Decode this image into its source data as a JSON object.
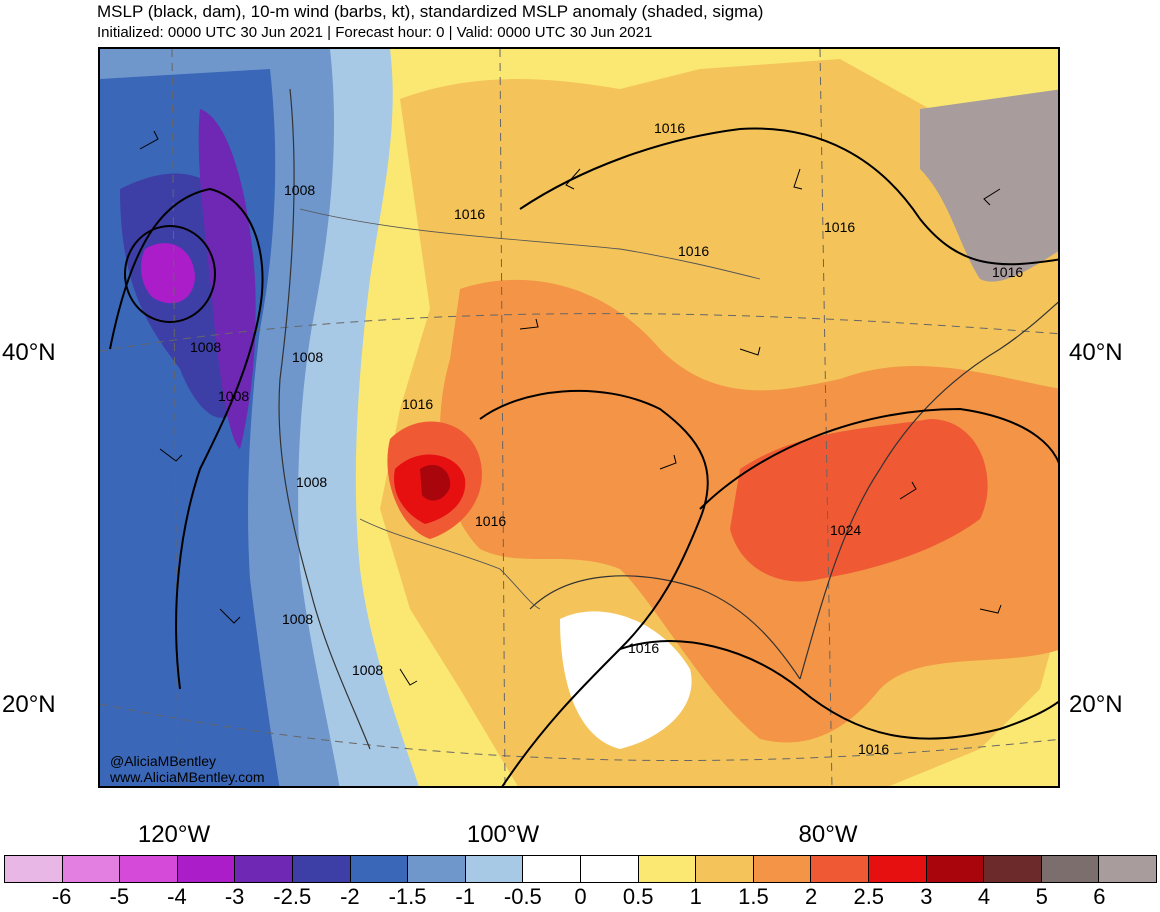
{
  "header": {
    "title": "MSLP (black, dam), 10-m wind (barbs, kt), standardized MSLP anomaly (shaded, sigma)",
    "subtitle": "Initialized: 0000 UTC 30 Jun 2021 | Forecast hour: 0 | Valid: 0000 UTC 30 Jun 2021"
  },
  "map": {
    "lat_labels": [
      "40°N",
      "20°N"
    ],
    "lon_labels": [
      "120°W",
      "100°W",
      "80°W"
    ],
    "credit_handle": "@AliciaMBentley",
    "credit_url": "www.AliciaMBentley.com",
    "isobar_labels": [
      "1008",
      "1008",
      "1008",
      "1008",
      "1008",
      "1008",
      "1008",
      "1016",
      "1016",
      "1016",
      "1016",
      "1016",
      "1016",
      "1016",
      "1016",
      "1016",
      "1024"
    ]
  },
  "colorbar": {
    "ticks": [
      "-6",
      "-5",
      "-4",
      "-3",
      "-2.5",
      "-2",
      "-1.5",
      "-1",
      "-0.5",
      "0",
      "0.5",
      "1",
      "1.5",
      "2",
      "2.5",
      "3",
      "4",
      "5",
      "6"
    ],
    "colors": [
      "#e9b7e6",
      "#e27fe0",
      "#d54ad8",
      "#aa1dc9",
      "#6e28b3",
      "#3e3fa6",
      "#3a67b8",
      "#6f97cc",
      "#a8c9e6",
      "#ffffff",
      "#ffffff",
      "#fbe873",
      "#f4c45a",
      "#f39446",
      "#ef5a34",
      "#e61010",
      "#a8050c",
      "#6c2a2a",
      "#7d6e6e",
      "#a89c9c"
    ]
  }
}
